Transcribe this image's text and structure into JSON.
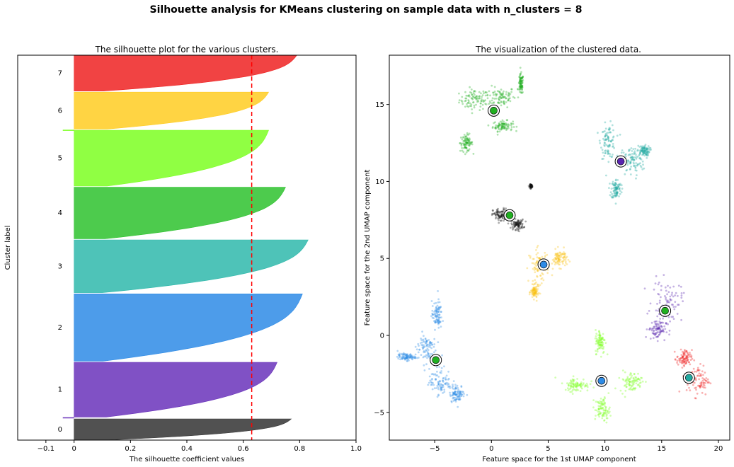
{
  "figure": {
    "suptitle": "Silhouette analysis for KMeans clustering on sample data with n_clusters = 8"
  },
  "chart_data": [
    {
      "type": "area",
      "title": "The silhouette plot for the various clusters.",
      "xlabel": "The silhouette coefficient values",
      "ylabel": "Cluster label",
      "xlim": [
        -0.2,
        1.0
      ],
      "xticks": [
        -0.1,
        0,
        0.2,
        0.4,
        0.6,
        0.8,
        1.0
      ],
      "xtick_labels": [
        "−0.1",
        "0",
        "0.2",
        "0.4",
        "0.6",
        "0.8",
        "1.0"
      ],
      "ylim": [
        0,
        1
      ],
      "average_silhouette": 0.63,
      "average_line_color": "#ff0000",
      "grid": false,
      "clusters": [
        {
          "label": "0",
          "color": "#333333",
          "y_start": 0.0,
          "y_end": 0.055,
          "max": 0.77,
          "min": 0.0
        },
        {
          "label": "1",
          "color": "#6a33bb",
          "y_start": 0.06,
          "y_end": 0.202,
          "max": 0.72,
          "min": 0.0
        },
        {
          "label": "2",
          "color": "#2e8be6",
          "y_start": 0.205,
          "y_end": 0.38,
          "max": 0.81,
          "min": 0.0
        },
        {
          "label": "3",
          "color": "#2fb9ab",
          "y_start": 0.383,
          "y_end": 0.52,
          "max": 0.83,
          "min": 0.0
        },
        {
          "label": "4",
          "color": "#2ec22e",
          "y_start": 0.523,
          "y_end": 0.657,
          "max": 0.75,
          "min": 0.0
        },
        {
          "label": "5",
          "color": "#7dff22",
          "y_start": 0.66,
          "y_end": 0.805,
          "max": 0.69,
          "min": -0.04
        },
        {
          "label": "6",
          "color": "#ffcc22",
          "y_start": 0.808,
          "y_end": 0.904,
          "max": 0.69,
          "min": 0.0
        },
        {
          "label": "7",
          "color": "#ee2222",
          "y_start": 0.907,
          "y_end": 1.0,
          "max": 0.79,
          "min": 0.0
        }
      ]
    },
    {
      "type": "scatter",
      "title": "The visualization of the clustered data.",
      "xlabel": "Feature space for the 1st UMAP component",
      "ylabel": "Feature space for the 2nd UMAP component",
      "xlim": [
        -9,
        21
      ],
      "ylim": [
        -6.8,
        18.2
      ],
      "xticks": [
        -5,
        0,
        5,
        10,
        15,
        20
      ],
      "yticks": [
        -5,
        0,
        5,
        10,
        15
      ],
      "xtick_labels": [
        "−5",
        "0",
        "5",
        "10",
        "15",
        "20"
      ],
      "ytick_labels": [
        "−5",
        "0",
        "5",
        "10",
        "15"
      ],
      "grid": false,
      "groups": [
        {
          "color": "#21b021",
          "blobs": [
            [
              -1.5,
              15.3,
              1.2,
              0.6
            ],
            [
              0.8,
              15.5,
              1.2,
              0.6
            ],
            [
              1.0,
              13.6,
              0.8,
              0.3
            ],
            [
              -2.2,
              12.5,
              0.5,
              0.5
            ],
            [
              2.6,
              16.3,
              0.2,
              0.6
            ]
          ]
        },
        {
          "color": "#20a9a0",
          "blobs": [
            [
              10.3,
              12.6,
              0.6,
              1.0
            ],
            [
              12.4,
              11.3,
              1.0,
              0.9
            ],
            [
              11.0,
              9.5,
              0.4,
              0.6
            ],
            [
              13.4,
              12.0,
              0.5,
              0.3
            ]
          ]
        },
        {
          "color": "#111111",
          "blobs": [
            [
              0.8,
              7.8,
              0.6,
              0.4
            ],
            [
              2.3,
              7.2,
              0.5,
              0.3
            ],
            [
              3.5,
              9.7,
              0.1,
              0.1
            ]
          ]
        },
        {
          "color": "#f9c21a",
          "blobs": [
            [
              4.2,
              4.5,
              0.8,
              1.0
            ],
            [
              6.0,
              5.0,
              0.6,
              0.5
            ],
            [
              3.8,
              2.8,
              0.3,
              0.4
            ]
          ]
        },
        {
          "color": "#5a24b0",
          "blobs": [
            [
              15.5,
              2.2,
              1.2,
              1.2
            ],
            [
              14.6,
              0.4,
              0.7,
              0.6
            ]
          ]
        },
        {
          "color": "#ee2222",
          "blobs": [
            [
              17.0,
              -1.5,
              0.6,
              0.5
            ],
            [
              18.2,
              -2.9,
              0.9,
              0.9
            ]
          ]
        },
        {
          "color": "#7dff22",
          "blobs": [
            [
              9.6,
              -0.4,
              0.4,
              0.7
            ],
            [
              7.5,
              -3.2,
              1.0,
              0.4
            ],
            [
              12.3,
              -3.0,
              0.9,
              0.6
            ],
            [
              9.8,
              -4.8,
              0.6,
              0.7
            ]
          ]
        },
        {
          "color": "#2e8be6",
          "blobs": [
            [
              -7.5,
              -1.4,
              0.7,
              0.2
            ],
            [
              -5.8,
              -0.8,
              0.8,
              0.9
            ],
            [
              -4.8,
              1.3,
              0.4,
              0.8
            ],
            [
              -4.5,
              -3.0,
              0.9,
              0.8
            ],
            [
              -3.0,
              -3.8,
              0.6,
              0.5
            ]
          ]
        }
      ],
      "centers": [
        {
          "x": 0.2,
          "y": 14.6,
          "color": "#21b021"
        },
        {
          "x": 11.4,
          "y": 11.3,
          "color": "#5a24b0"
        },
        {
          "x": 1.6,
          "y": 7.8,
          "color": "#21b021"
        },
        {
          "x": 4.6,
          "y": 4.6,
          "color": "#2e8be6"
        },
        {
          "x": 15.3,
          "y": 1.6,
          "color": "#21b021"
        },
        {
          "x": -4.9,
          "y": -1.6,
          "color": "#21b021"
        },
        {
          "x": 9.7,
          "y": -2.95,
          "color": "#2e8be6"
        },
        {
          "x": 17.4,
          "y": -2.75,
          "color": "#20a9a0"
        }
      ]
    }
  ]
}
